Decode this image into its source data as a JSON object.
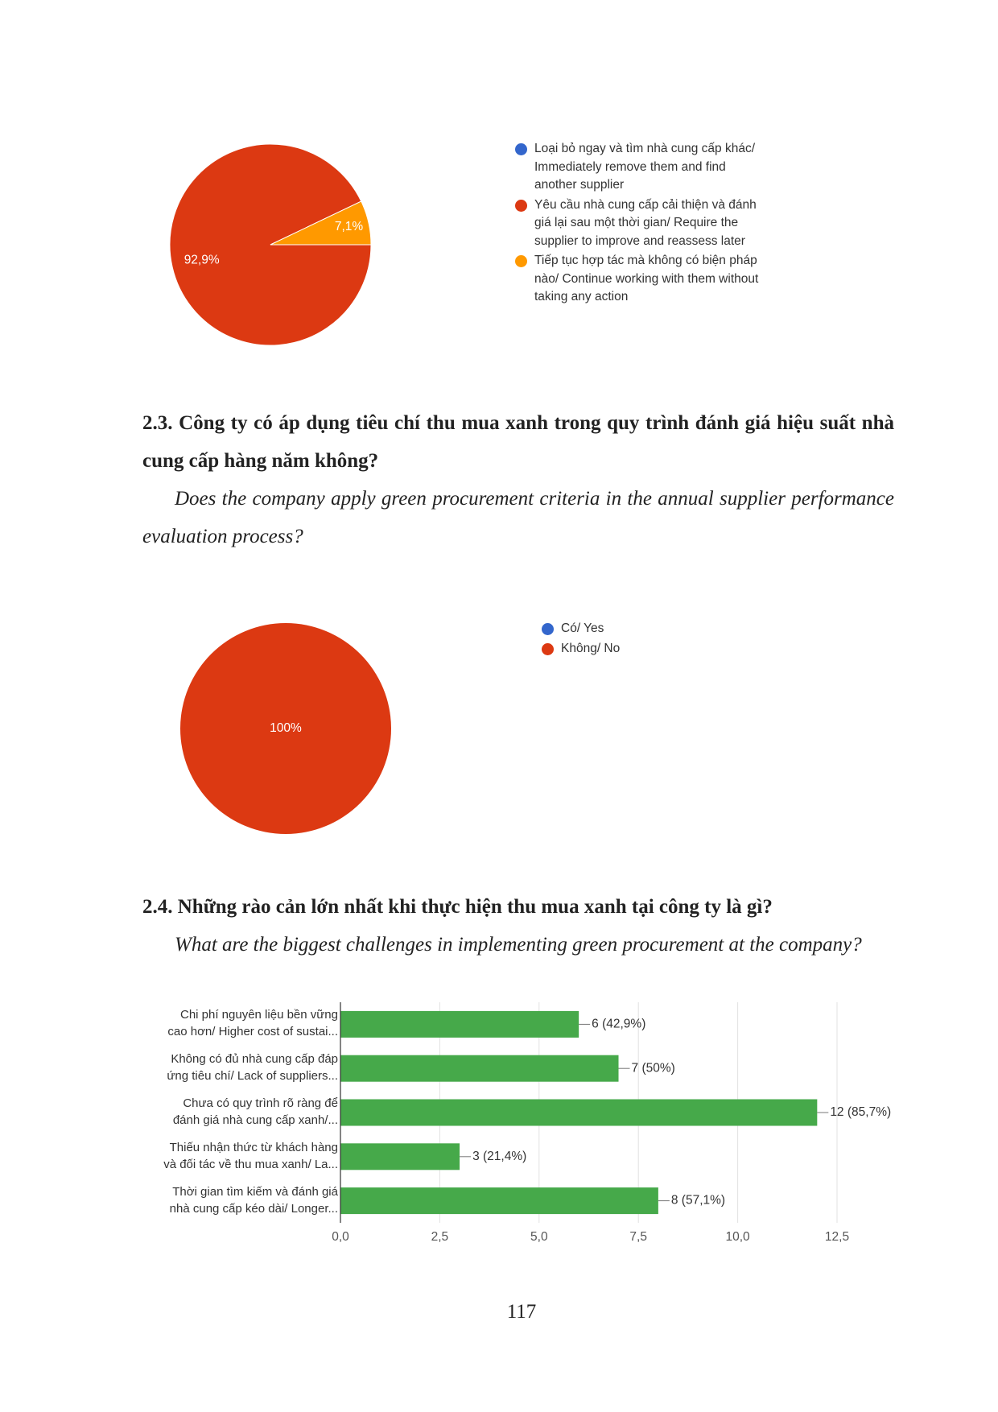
{
  "chart_data": [
    {
      "type": "pie",
      "categories": [
        "Loại bỏ ngay và tìm nhà cung cấp khác/ Immediately remove them and find another supplier",
        "Yêu cầu nhà cung cấp cải thiện và đánh giá lại sau một thời gian/ Require the supplier to improve and reassess later",
        "Tiếp tục hợp tác mà không có biện pháp nào/ Continue working with them without taking any action"
      ],
      "values": [
        0,
        92.9,
        7.1
      ],
      "value_labels": [
        null,
        "92,9%",
        "7,1%"
      ],
      "colors": [
        "#3366cc",
        "#dc3912",
        "#ff9900"
      ]
    },
    {
      "type": "pie",
      "categories": [
        "Có/ Yes",
        "Không/ No"
      ],
      "values": [
        0,
        100
      ],
      "value_labels": [
        null,
        "100%"
      ],
      "colors": [
        "#3366cc",
        "#dc3912"
      ]
    },
    {
      "type": "bar",
      "orientation": "horizontal",
      "categories": [
        "Chi phí nguyên liệu bền vững\ncao hơn/ Higher cost of sustai...",
        "Không có đủ nhà cung cấp đáp\nứng tiêu chí/ Lack of suppliers...",
        "Chưa có quy trình rõ ràng để\nđánh giá nhà cung cấp xanh/...",
        "Thiếu nhận thức từ khách hàng\nvà đối tác về thu mua xanh/ La...",
        "Thời gian tìm kiếm và đánh giá\nnhà cung cấp kéo dài/ Longer..."
      ],
      "values": [
        6,
        7,
        12,
        3,
        8
      ],
      "value_labels": [
        "6 (42,9%)",
        "7 (50%)",
        "12 (85,7%)",
        "3 (21,4%)",
        "8 (57,1%)"
      ],
      "color": "#46a94a",
      "xlim": [
        0,
        12.5
      ],
      "xticks": [
        {
          "value": 0,
          "label": "0,0"
        },
        {
          "value": 2.5,
          "label": "2,5"
        },
        {
          "value": 5,
          "label": "5,0"
        },
        {
          "value": 7.5,
          "label": "7,5"
        },
        {
          "value": 10,
          "label": "10,0"
        },
        {
          "value": 12.5,
          "label": "12,5"
        }
      ],
      "grid": true
    }
  ],
  "questions": [
    {
      "heading": "2.3. Công ty có áp dụng tiêu chí thu mua xanh trong quy trình đánh giá hiệu suất nhà cung cấp hàng năm không?",
      "translation": "Does the company apply green procurement criteria in the annual supplier performance evaluation process?"
    },
    {
      "heading": "2.4. Những rào cản lớn nhất khi thực hiện thu mua xanh tại công ty là gì?",
      "translation": "What are the biggest challenges in implementing green procurement at the company?"
    }
  ],
  "page_number": "117"
}
